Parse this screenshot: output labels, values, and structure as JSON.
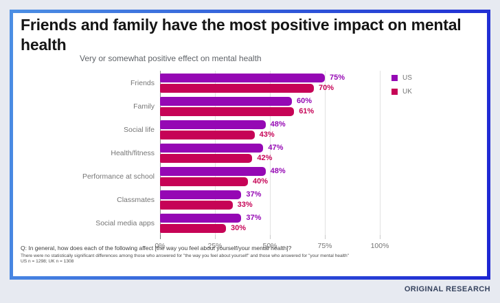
{
  "page": {
    "badge": "ORIGINAL RESEARCH",
    "background_color": "#E7EAF1",
    "card_border_gradient": [
      "#4C8FE4",
      "#1E26D3"
    ]
  },
  "card": {
    "footnotes": {
      "question": "Q: In general, how does each of the following affect [the way you feel about yourself/your mental health]?",
      "note": "There were no statistically significant differences among those who answered for \"the way you feel about yourself\" and those who answered for \"your mental health\"",
      "sample": "US n = 1298; UK n = 1308"
    }
  },
  "chart_data": {
    "type": "bar",
    "orientation": "horizontal",
    "title": "Friends and family have the most positive impact on mental health",
    "subtitle": "Very or somewhat positive effect on mental health",
    "categories": [
      "Friends",
      "Family",
      "Social life",
      "Health/fitness",
      "Performance at school",
      "Classmates",
      "Social media apps"
    ],
    "series": [
      {
        "name": "US",
        "color": "#9508B4",
        "values": [
          75,
          60,
          48,
          47,
          48,
          37,
          37
        ]
      },
      {
        "name": "UK",
        "color": "#C60356",
        "values": [
          70,
          61,
          43,
          42,
          40,
          33,
          30
        ]
      }
    ],
    "value_suffix": "%",
    "xlim": [
      0,
      100
    ],
    "x_tick_values": [
      0,
      25,
      50,
      75,
      100
    ],
    "x_ticks": [
      "0%",
      "25%",
      "50%",
      "75%",
      "100%"
    ],
    "grid": true,
    "legend_position": "top-right"
  }
}
